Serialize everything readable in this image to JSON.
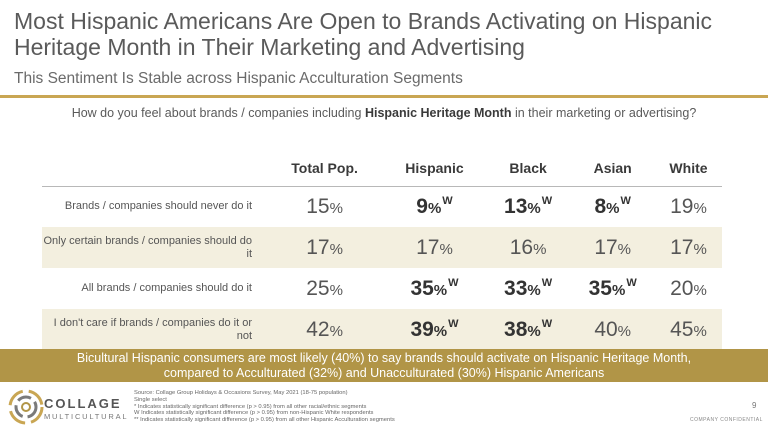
{
  "title": "Most Hispanic Americans Are Open to Brands Activating on Hispanic Heritage Month in Their Marketing and Advertising",
  "subtitle": "This Sentiment Is Stable across Hispanic Acculturation Segments",
  "question": {
    "prefix": "How do you feel about brands / companies including ",
    "bold": "Hispanic Heritage Month",
    "suffix": " in their marketing or advertising?"
  },
  "columns": [
    "Total Pop.",
    "Hispanic",
    "Black",
    "Asian",
    "White"
  ],
  "rows": [
    {
      "label": "Brands / companies should never do it",
      "cells": [
        {
          "num": "15",
          "mark": ""
        },
        {
          "num": "9",
          "mark": "W"
        },
        {
          "num": "13",
          "mark": "W"
        },
        {
          "num": "8",
          "mark": "W"
        },
        {
          "num": "19",
          "mark": ""
        }
      ]
    },
    {
      "label": "Only certain brands / companies should do it",
      "cells": [
        {
          "num": "17",
          "mark": ""
        },
        {
          "num": "17",
          "mark": ""
        },
        {
          "num": "16",
          "mark": ""
        },
        {
          "num": "17",
          "mark": ""
        },
        {
          "num": "17",
          "mark": ""
        }
      ]
    },
    {
      "label": "All brands / companies should do it",
      "cells": [
        {
          "num": "25",
          "mark": ""
        },
        {
          "num": "35",
          "mark": "W"
        },
        {
          "num": "33",
          "mark": "W"
        },
        {
          "num": "35",
          "mark": "W"
        },
        {
          "num": "20",
          "mark": ""
        }
      ]
    },
    {
      "label": "I don't care if brands / companies do it or not",
      "cells": [
        {
          "num": "42",
          "mark": ""
        },
        {
          "num": "39",
          "mark": "W"
        },
        {
          "num": "38",
          "mark": "W"
        },
        {
          "num": "40",
          "mark": ""
        },
        {
          "num": "45",
          "mark": ""
        }
      ]
    }
  ],
  "pct_sign": "%",
  "banner": {
    "line1": "Bicultural Hispanic consumers are most likely (40%) to say brands should activate on Hispanic Heritage Month,",
    "line2": "compared to Acculturated (32%) and Unacculturated (30%) Hispanic Americans"
  },
  "logo": {
    "line1": "COLLAGE",
    "line2": "MULTICULTURAL"
  },
  "notes": [
    "Source: Collage Group Holidays & Occasions Survey, May 2021 (18-75 population)",
    "Single select",
    "* Indicates statistically significant difference (p > 0.95) from all other racial/ethnic segments",
    "W Indicates statistically significant difference (p > 0.95) from non-Hispanic White respondents",
    "** Indicates statistically significant difference (p > 0.95) from all other Hispanic Acculturation segments"
  ],
  "page_number": "9",
  "confidential": "COMPANY CONFIDENTIAL",
  "colors": {
    "gold": "#c9a653",
    "banner": "#b19547",
    "shade": "#f3efdf"
  }
}
